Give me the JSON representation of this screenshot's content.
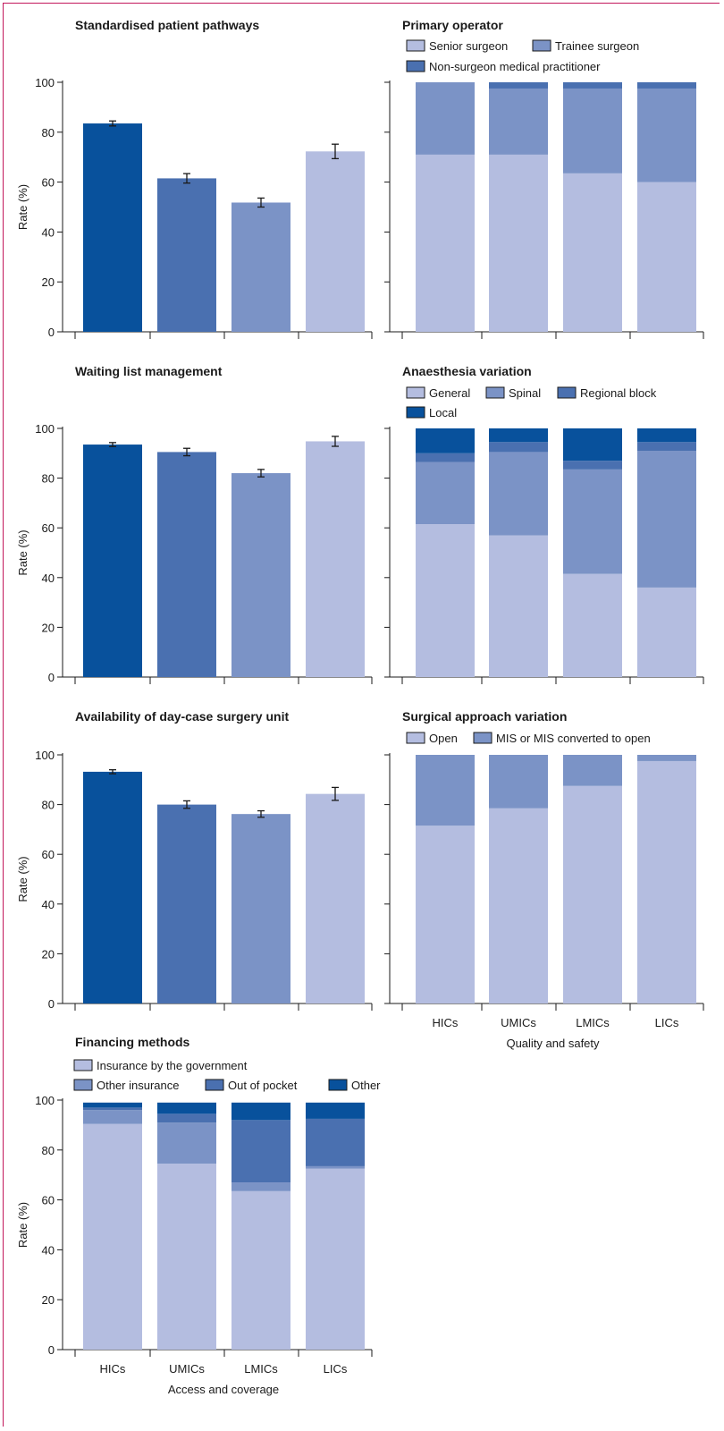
{
  "colors": {
    "c1": "#b4bde0",
    "c2": "#7b93c6",
    "c3": "#4a70b0",
    "c4": "#08519c",
    "border": "#c2185b"
  },
  "x_categories": [
    "HICs",
    "UMICs",
    "LMICs",
    "LICs"
  ],
  "footer": {
    "left": "Access and coverage",
    "right": "Quality and safety"
  },
  "chart_data": [
    {
      "id": "pathways",
      "type": "bar",
      "title": "Standardised patient pathways",
      "ylabel": "Rate (%)",
      "ylim": [
        0,
        100
      ],
      "yticks": [
        0,
        20,
        40,
        60,
        80,
        100
      ],
      "categories": [
        "HICs",
        "UMICs",
        "LMICs",
        "LICs"
      ],
      "values": [
        83.5,
        61.5,
        51.8,
        72.3
      ],
      "error": [
        1.0,
        1.9,
        1.8,
        2.9
      ],
      "bar_colors": [
        "#08519c",
        "#4a70b0",
        "#7b93c6",
        "#b4bde0"
      ]
    },
    {
      "id": "operator",
      "type": "bar",
      "stacked": true,
      "title": "Primary operator",
      "ylim": [
        0,
        100
      ],
      "categories": [
        "HICs",
        "UMICs",
        "LMICs",
        "LICs"
      ],
      "legend": [
        "Senior surgeon",
        "Trainee surgeon",
        "Non-surgeon medical practitioner"
      ],
      "series": [
        {
          "name": "Senior surgeon",
          "color": "#b4bde0",
          "values": [
            71,
            71,
            63.5,
            60
          ]
        },
        {
          "name": "Trainee surgeon",
          "color": "#7b93c6",
          "values": [
            29,
            26.5,
            34,
            37.5
          ]
        },
        {
          "name": "Non-surgeon medical practitioner",
          "color": "#4a70b0",
          "values": [
            0,
            2.5,
            2.5,
            2.5
          ]
        }
      ]
    },
    {
      "id": "waiting",
      "type": "bar",
      "title": "Waiting list management",
      "ylabel": "Rate (%)",
      "ylim": [
        0,
        100
      ],
      "yticks": [
        0,
        20,
        40,
        60,
        80,
        100
      ],
      "categories": [
        "HICs",
        "UMICs",
        "LMICs",
        "LICs"
      ],
      "values": [
        93.5,
        90.5,
        82,
        94.8
      ],
      "error": [
        0.8,
        1.5,
        1.5,
        2.0
      ],
      "bar_colors": [
        "#08519c",
        "#4a70b0",
        "#7b93c6",
        "#b4bde0"
      ]
    },
    {
      "id": "anaesthesia",
      "type": "bar",
      "stacked": true,
      "title": "Anaesthesia variation",
      "ylim": [
        0,
        100
      ],
      "categories": [
        "HICs",
        "UMICs",
        "LMICs",
        "LICs"
      ],
      "legend": [
        "General",
        "Spinal",
        "Regional block",
        "Local"
      ],
      "series": [
        {
          "name": "General",
          "color": "#b4bde0",
          "values": [
            61.5,
            57,
            41.5,
            36
          ]
        },
        {
          "name": "Spinal",
          "color": "#7b93c6",
          "values": [
            25,
            33.5,
            42,
            55
          ]
        },
        {
          "name": "Regional block",
          "color": "#4a70b0",
          "values": [
            3.5,
            4,
            3.5,
            3.5
          ]
        },
        {
          "name": "Local",
          "color": "#08519c",
          "values": [
            10,
            5.5,
            13,
            5.5
          ]
        }
      ]
    },
    {
      "id": "daycase",
      "type": "bar",
      "title": "Availability of day-case surgery unit",
      "ylabel": "Rate (%)",
      "ylim": [
        0,
        100
      ],
      "yticks": [
        0,
        20,
        40,
        60,
        80,
        100
      ],
      "categories": [
        "HICs",
        "UMICs",
        "LMICs",
        "LICs"
      ],
      "values": [
        93.2,
        80,
        76.2,
        84.3
      ],
      "error": [
        0.8,
        1.5,
        1.3,
        2.6
      ],
      "bar_colors": [
        "#08519c",
        "#4a70b0",
        "#7b93c6",
        "#b4bde0"
      ]
    },
    {
      "id": "approach",
      "type": "bar",
      "stacked": true,
      "title": "Surgical approach variation",
      "ylim": [
        0,
        100
      ],
      "categories": [
        "HICs",
        "UMICs",
        "LMICs",
        "LICs"
      ],
      "legend": [
        "Open",
        "MIS or MIS converted to open"
      ],
      "series": [
        {
          "name": "Open",
          "color": "#b4bde0",
          "values": [
            71.5,
            78.5,
            87.5,
            97.5
          ]
        },
        {
          "name": "MIS or MIS converted to open",
          "color": "#7b93c6",
          "values": [
            28.5,
            21.5,
            12.5,
            2.5
          ]
        }
      ]
    },
    {
      "id": "financing",
      "type": "bar",
      "stacked": true,
      "title": "Financing methods",
      "ylabel": "Rate (%)",
      "ylim": [
        0,
        100
      ],
      "yticks": [
        0,
        20,
        40,
        60,
        80,
        100
      ],
      "categories": [
        "HICs",
        "UMICs",
        "LMICs",
        "LICs"
      ],
      "legend": [
        "Insurance by the government",
        "Other insurance",
        "Out of pocket",
        "Other"
      ],
      "series": [
        {
          "name": "Insurance by the government",
          "color": "#b4bde0",
          "values": [
            90.5,
            74.5,
            63.5,
            72.5
          ]
        },
        {
          "name": "Other insurance",
          "color": "#7b93c6",
          "values": [
            5.5,
            16.5,
            3.5,
            1
          ]
        },
        {
          "name": "Out of pocket",
          "color": "#4a70b0",
          "values": [
            1,
            3.5,
            25,
            19
          ]
        },
        {
          "name": "Other",
          "color": "#08519c",
          "values": [
            2,
            4.5,
            7,
            6.5
          ]
        }
      ]
    }
  ]
}
